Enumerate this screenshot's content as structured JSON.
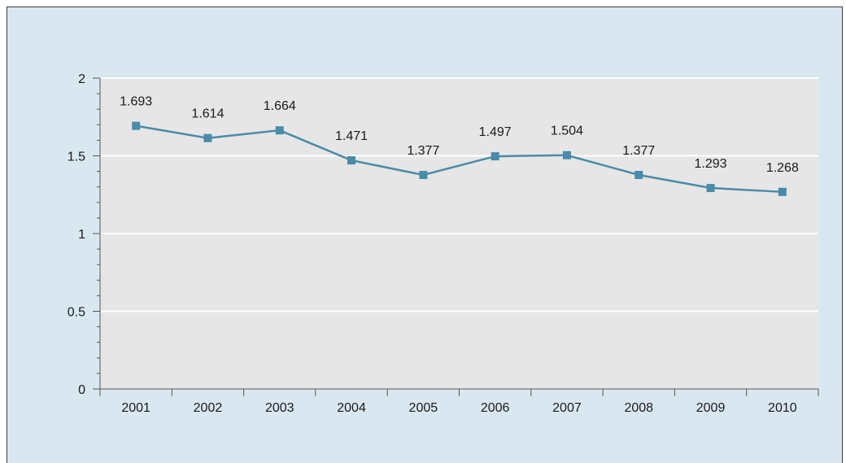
{
  "chart_data": {
    "type": "line",
    "title": "",
    "xlabel": "",
    "ylabel": "",
    "x": [
      "2001",
      "2002",
      "2003",
      "2004",
      "2005",
      "2006",
      "2007",
      "2008",
      "2009",
      "2010"
    ],
    "series": [
      {
        "values": [
          1.693,
          1.614,
          1.664,
          1.471,
          1.377,
          1.497,
          1.504,
          1.377,
          1.293,
          1.268
        ],
        "data_labels": [
          "1.693",
          "1.614",
          "1.664",
          "1.471",
          "1.377",
          "1.497",
          "1.504",
          "1.377",
          "1.293",
          "1.268"
        ],
        "color": "#4a8ba8"
      }
    ],
    "ylim": [
      0,
      2
    ],
    "yticks": [
      0,
      0.5,
      1,
      1.5,
      2
    ],
    "ytick_labels": [
      "0",
      "0.5",
      "1",
      "1.5",
      "2"
    ],
    "grid": true,
    "legend": "none",
    "colors": {
      "background": "#d9e8f0",
      "plot_area": "#e6e6e6",
      "gridline": "#ffffff",
      "axis": "#555555"
    }
  }
}
